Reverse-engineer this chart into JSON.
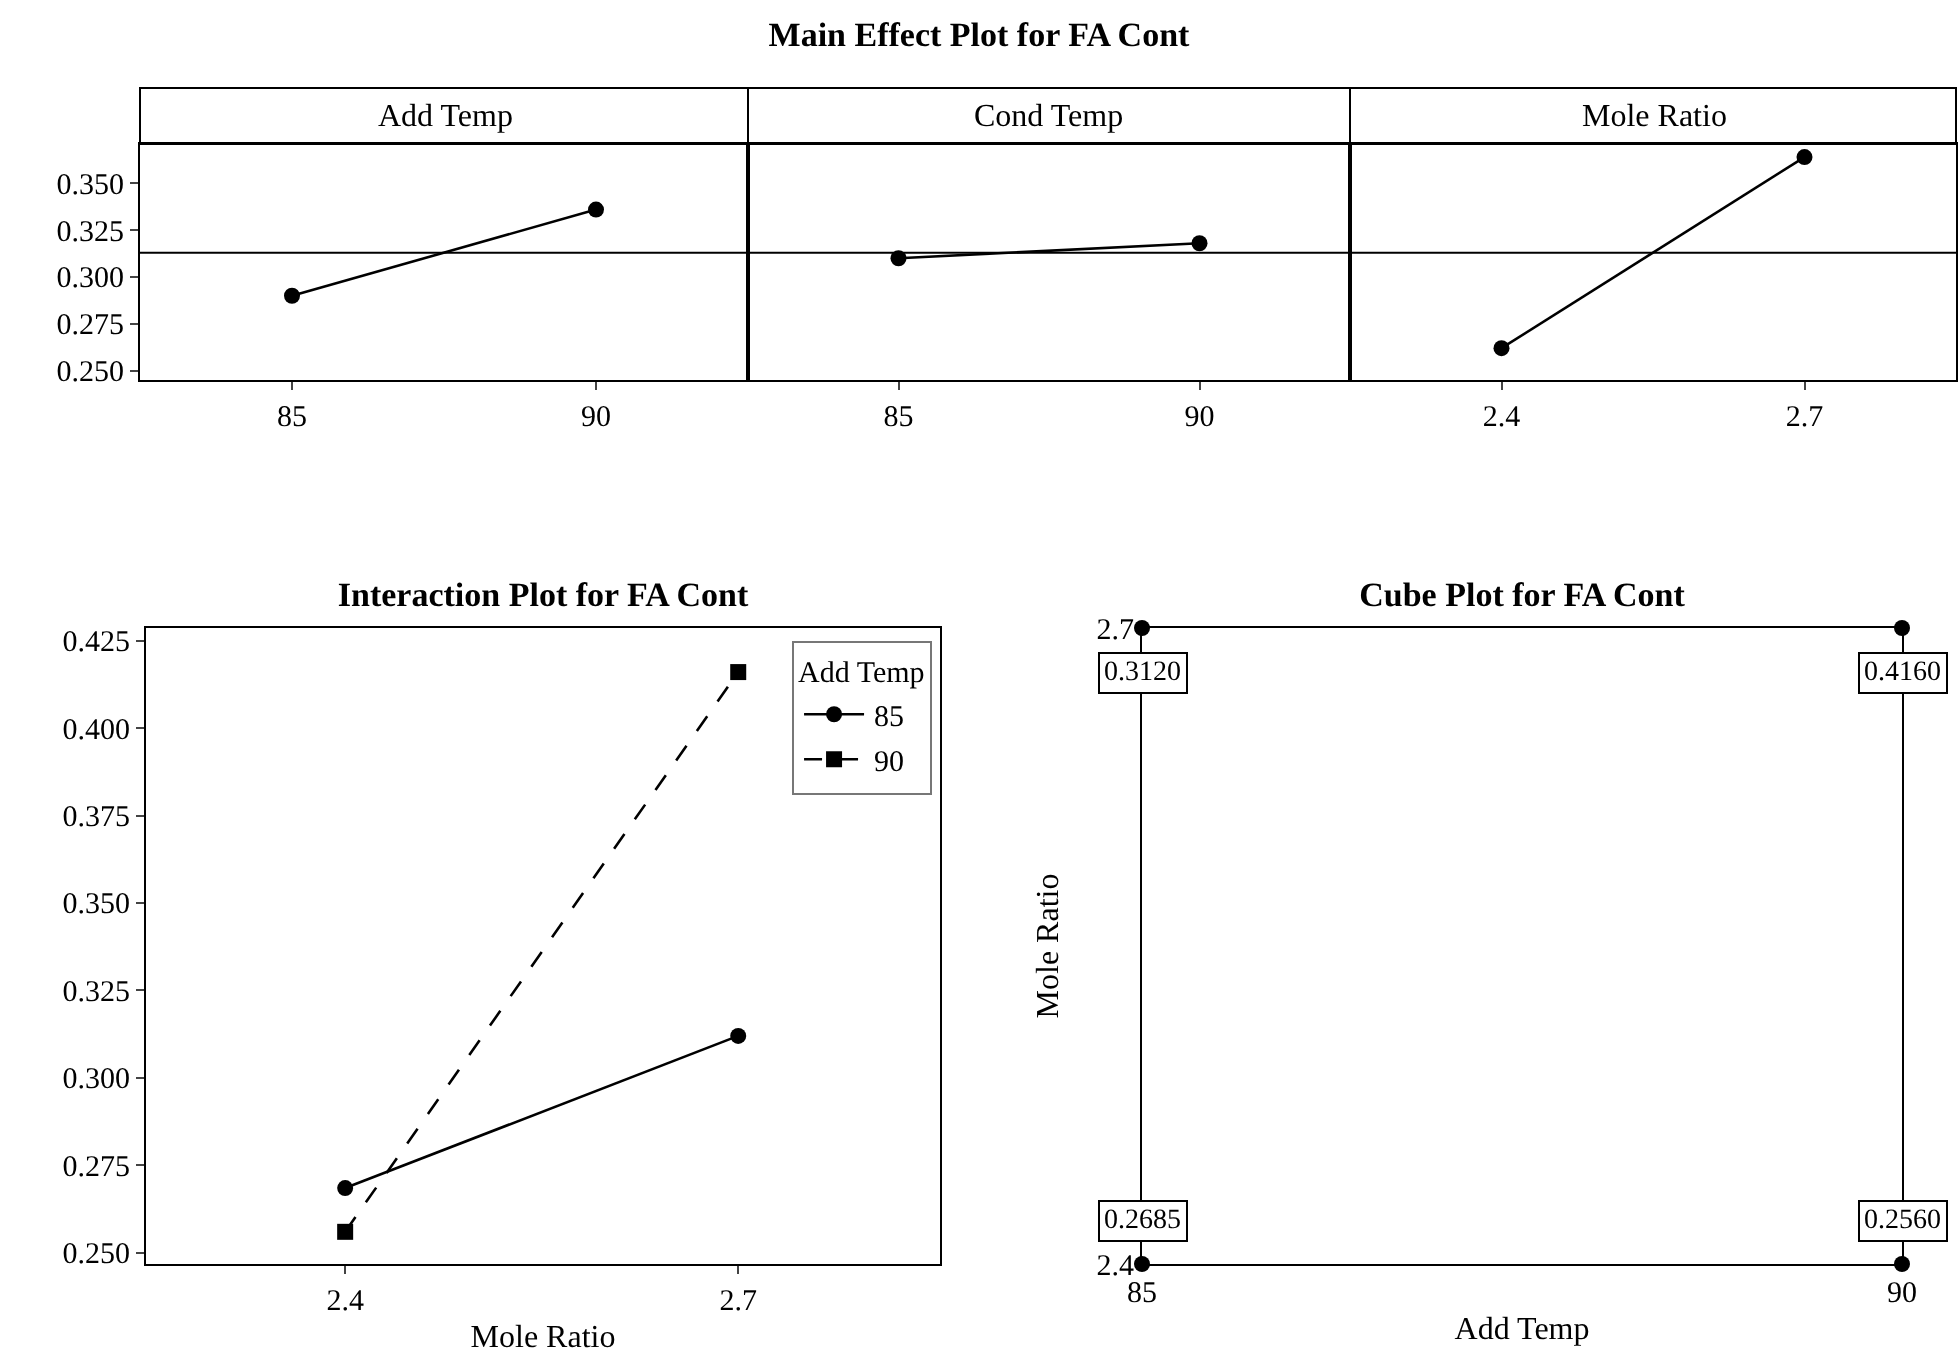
{
  "chart_data": [
    {
      "type": "other",
      "title": "Main Effect Plot for FA Cont"
    },
    {
      "type": "line",
      "subtitle": "Add Temp",
      "x": [
        85,
        90
      ],
      "values": [
        0.29,
        0.336
      ],
      "color": "#000000",
      "marker": "circle",
      "xlim": [
        82.5,
        92.5
      ],
      "xticks": [
        85,
        90
      ],
      "ylim": [
        0.245,
        0.371
      ],
      "yticks": [
        {
          "value": 0.25,
          "label": "0.250"
        },
        {
          "value": 0.275,
          "label": "0.275"
        },
        {
          "value": 0.3,
          "label": "0.300"
        },
        {
          "value": 0.325,
          "label": "0.325"
        },
        {
          "value": 0.35,
          "label": "0.350"
        }
      ],
      "ref_lines": [
        {
          "axis": "y",
          "value": 0.313,
          "color": "#000000"
        }
      ]
    },
    {
      "type": "line",
      "subtitle": "Cond Temp",
      "x": [
        85,
        90
      ],
      "values": [
        0.31,
        0.318
      ],
      "color": "#000000",
      "marker": "circle",
      "xlim": [
        82.5,
        92.5
      ],
      "xticks": [
        85,
        90
      ],
      "ylim": [
        0.245,
        0.371
      ],
      "tick_labels": "x",
      "ref_lines": [
        {
          "axis": "y",
          "value": 0.313,
          "color": "#000000"
        }
      ]
    },
    {
      "type": "line",
      "subtitle": "Mole Ratio",
      "x": [
        2.4,
        2.7
      ],
      "values": [
        0.262,
        0.364
      ],
      "color": "#000000",
      "marker": "circle",
      "xlim": [
        2.25,
        2.85
      ],
      "xticks": [
        2.4,
        2.7
      ],
      "ylim": [
        0.245,
        0.371
      ],
      "tick_labels": "x",
      "ref_lines": [
        {
          "axis": "y",
          "value": 0.313,
          "color": "#000000"
        }
      ]
    },
    {
      "type": "line",
      "title": "Interaction Plot for FA Cont",
      "xlabel": "Mole Ratio",
      "legend_title": "Add Temp",
      "legend": "top right",
      "x": [
        2.4,
        2.7
      ],
      "series": [
        {
          "name": "85",
          "color": "#000000",
          "marker": "circle",
          "line_style": "solid",
          "values": [
            0.2685,
            0.312
          ]
        },
        {
          "name": "90",
          "color": "#000000",
          "marker": "square",
          "line_style": "dashed",
          "values": [
            0.256,
            0.416
          ]
        }
      ],
      "xlim": [
        2.248,
        2.854
      ],
      "xticks": [
        2.4,
        2.7
      ],
      "ylim": [
        0.2468,
        0.4286
      ],
      "yticks": [
        {
          "value": 0.25,
          "label": "0.250"
        },
        {
          "value": 0.275,
          "label": "0.275"
        },
        {
          "value": 0.3,
          "label": "0.300"
        },
        {
          "value": 0.325,
          "label": "0.325"
        },
        {
          "value": 0.35,
          "label": "0.350"
        },
        {
          "value": 0.375,
          "label": "0.375"
        },
        {
          "value": 0.4,
          "label": "0.400"
        },
        {
          "value": 0.425,
          "label": "0.425"
        }
      ]
    },
    {
      "type": "other",
      "title": "Cube Plot for FA Cont",
      "xlabel": "Add Temp",
      "ylabel": "Mole Ratio",
      "categories": [
        "85",
        "90"
      ],
      "y_categories": [
        "2.7",
        "2.4"
      ],
      "series": [
        {
          "values": [
            0.312,
            0.416
          ],
          "value_labels": [
            "0.3120",
            "0.4160"
          ]
        },
        {
          "values": [
            0.2685,
            0.256
          ],
          "value_labels": [
            "0.2685",
            "0.2560"
          ]
        }
      ]
    }
  ]
}
